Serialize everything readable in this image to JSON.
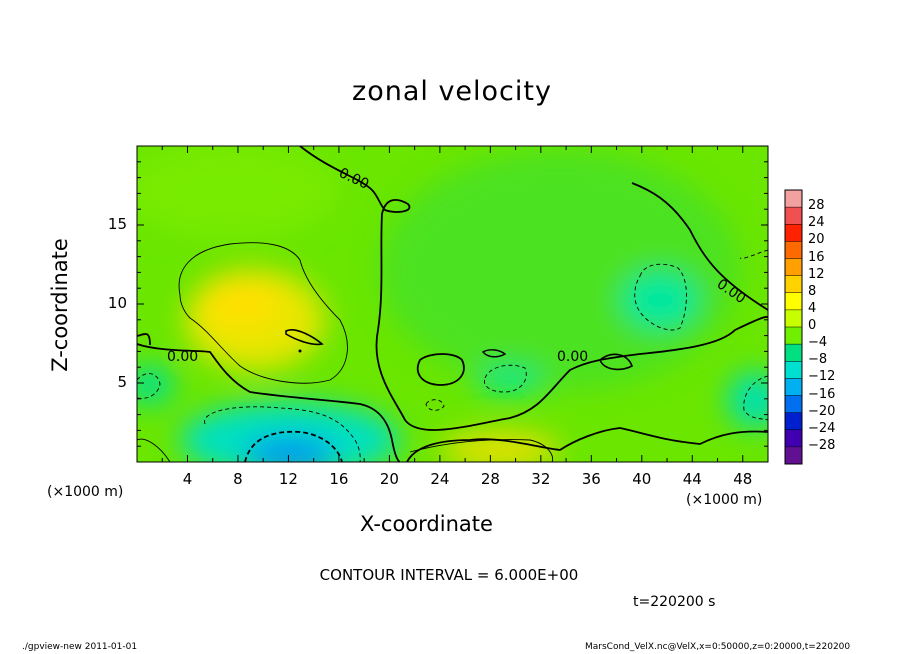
{
  "chart_data": {
    "type": "heatmap",
    "title": "zonal velocity",
    "xlabel": "X-coordinate",
    "ylabel": "Z-coordinate",
    "x_unit": "(×1000 m)",
    "y_unit": "(×1000 m)",
    "xlim": [
      0,
      50
    ],
    "ylim": [
      0,
      20
    ],
    "x_ticks": [
      "4",
      "8",
      "12",
      "16",
      "20",
      "24",
      "28",
      "32",
      "36",
      "40",
      "44",
      "48"
    ],
    "y_ticks": [
      "5",
      "10",
      "15"
    ],
    "colorbar": {
      "levels": [
        "28",
        "24",
        "20",
        "16",
        "12",
        "8",
        "4",
        "0",
        "−4",
        "−8",
        "−12",
        "−16",
        "−20",
        "−24",
        "−28"
      ],
      "colors": [
        "#f2a0a0",
        "#f05050",
        "#ff2200",
        "#ff6a00",
        "#ffa000",
        "#ffd200",
        "#ffff00",
        "#c8ff00",
        "#70f000",
        "#00e080",
        "#00e0d0",
        "#00b0f0",
        "#0070f0",
        "#0020d0",
        "#4000b0",
        "#601090"
      ]
    },
    "contour_labels": [
      "0.00",
      "0.00",
      "0.00",
      "0.00"
    ],
    "contour_interval": "CONTOUR INTERVAL = 6.000E+00",
    "time_label": "t=220200 s",
    "features": [
      {
        "kind": "max",
        "x": 10,
        "z": 9.5,
        "value": 8
      },
      {
        "kind": "max",
        "x": 28,
        "z": 0.8,
        "value": 7
      },
      {
        "kind": "min",
        "x": 12,
        "z": 0.5,
        "value": -13
      },
      {
        "kind": "min",
        "x": 42,
        "z": 11,
        "value": -6
      },
      {
        "kind": "min",
        "x": 29,
        "z": 5.5,
        "value": -5
      },
      {
        "kind": "min",
        "x": 49,
        "z": 4,
        "value": -8
      },
      {
        "kind": "min",
        "x": 2,
        "z": 5,
        "value": -5
      }
    ]
  },
  "footer": {
    "left": "./gpview-new  2011-01-01",
    "right": "MarsCond_VelX.nc@VelX,x=0:50000,z=0:20000,t=220200"
  }
}
